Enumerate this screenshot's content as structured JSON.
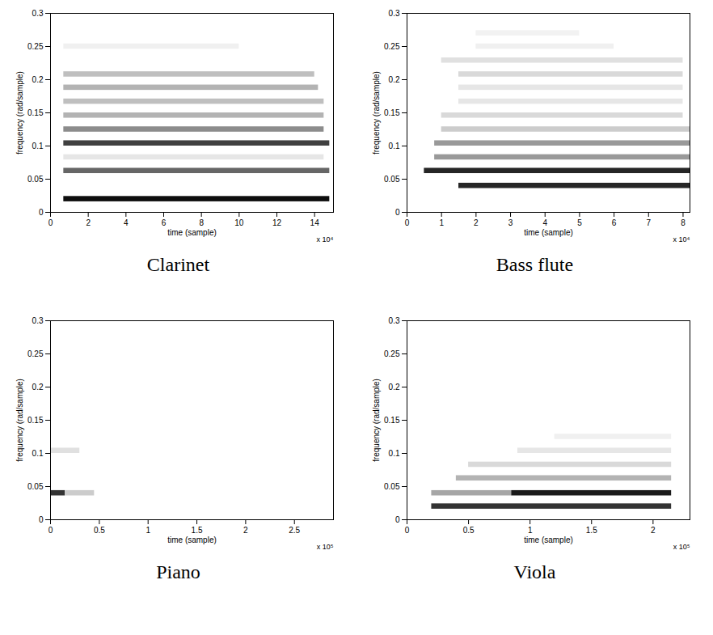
{
  "chart_data": [
    {
      "type": "heatmap",
      "title": "Clarinet",
      "xlabel": "time (sample)",
      "ylabel": "frequency (rad/sample)",
      "x_multiplier": "x 10⁴",
      "xlim": [
        0,
        15
      ],
      "xticks": [
        0,
        2,
        4,
        6,
        8,
        10,
        12,
        14
      ],
      "ylim": [
        0,
        0.3
      ],
      "yticks": [
        0,
        0.05,
        0.1,
        0.15,
        0.2,
        0.25,
        0.3
      ],
      "color_range": [
        0,
        1
      ],
      "bands": [
        {
          "frequency": 0.02,
          "start": 0.7,
          "end": 14.8,
          "intensity": 0.95
        },
        {
          "frequency": 0.0625,
          "start": 0.7,
          "end": 14.8,
          "intensity": 0.6
        },
        {
          "frequency": 0.083,
          "start": 0.7,
          "end": 14.5,
          "intensity": 0.1
        },
        {
          "frequency": 0.104,
          "start": 0.7,
          "end": 14.8,
          "intensity": 0.75
        },
        {
          "frequency": 0.125,
          "start": 0.7,
          "end": 14.5,
          "intensity": 0.45
        },
        {
          "frequency": 0.146,
          "start": 0.7,
          "end": 14.5,
          "intensity": 0.3
        },
        {
          "frequency": 0.167,
          "start": 0.7,
          "end": 14.5,
          "intensity": 0.25
        },
        {
          "frequency": 0.188,
          "start": 0.7,
          "end": 14.2,
          "intensity": 0.3
        },
        {
          "frequency": 0.208,
          "start": 0.7,
          "end": 14.0,
          "intensity": 0.25
        },
        {
          "frequency": 0.25,
          "start": 0.7,
          "end": 10.0,
          "intensity": 0.06
        }
      ]
    },
    {
      "type": "heatmap",
      "title": "Bass flute",
      "xlabel": "time (sample)",
      "ylabel": "frequency (rad/sample)",
      "x_multiplier": "x 10⁴",
      "xlim": [
        0,
        8.2
      ],
      "xticks": [
        0,
        1,
        2,
        3,
        4,
        5,
        6,
        7,
        8
      ],
      "ylim": [
        0,
        0.3
      ],
      "yticks": [
        0,
        0.05,
        0.1,
        0.15,
        0.2,
        0.25,
        0.3
      ],
      "color_range": [
        0,
        1
      ],
      "bands": [
        {
          "frequency": 0.04,
          "start": 1.5,
          "end": 8.2,
          "intensity": 0.85
        },
        {
          "frequency": 0.0625,
          "start": 0.5,
          "end": 8.2,
          "intensity": 0.85
        },
        {
          "frequency": 0.083,
          "start": 0.8,
          "end": 8.2,
          "intensity": 0.4
        },
        {
          "frequency": 0.104,
          "start": 0.8,
          "end": 8.2,
          "intensity": 0.4
        },
        {
          "frequency": 0.125,
          "start": 1.0,
          "end": 8.2,
          "intensity": 0.2
        },
        {
          "frequency": 0.146,
          "start": 1.0,
          "end": 8.0,
          "intensity": 0.15
        },
        {
          "frequency": 0.167,
          "start": 1.5,
          "end": 8.0,
          "intensity": 0.1
        },
        {
          "frequency": 0.188,
          "start": 1.5,
          "end": 8.0,
          "intensity": 0.1
        },
        {
          "frequency": 0.208,
          "start": 1.5,
          "end": 8.0,
          "intensity": 0.15
        },
        {
          "frequency": 0.229,
          "start": 1.0,
          "end": 8.0,
          "intensity": 0.12
        },
        {
          "frequency": 0.25,
          "start": 2.0,
          "end": 6.0,
          "intensity": 0.06
        },
        {
          "frequency": 0.27,
          "start": 2.0,
          "end": 5.0,
          "intensity": 0.05
        }
      ]
    },
    {
      "type": "heatmap",
      "title": "Piano",
      "xlabel": "time (sample)",
      "ylabel": "frequency (rad/sample)",
      "x_multiplier": "x 10⁵",
      "xlim": [
        0,
        2.9
      ],
      "xticks": [
        0,
        0.5,
        1,
        1.5,
        2,
        2.5
      ],
      "ylim": [
        0,
        0.3
      ],
      "yticks": [
        0,
        0.05,
        0.1,
        0.15,
        0.2,
        0.25,
        0.3
      ],
      "color_range": [
        0,
        1
      ],
      "bands": [
        {
          "frequency": 0.04,
          "start": 0,
          "end": 0.15,
          "intensity": 0.8
        },
        {
          "frequency": 0.04,
          "start": 0.15,
          "end": 0.45,
          "intensity": 0.2
        },
        {
          "frequency": 0.104,
          "start": 0,
          "end": 0.3,
          "intensity": 0.12
        }
      ]
    },
    {
      "type": "heatmap",
      "title": "Viola",
      "xlabel": "time (sample)",
      "ylabel": "frequency (rad/sample)",
      "x_multiplier": "x 10⁵",
      "xlim": [
        0,
        2.3
      ],
      "xticks": [
        0,
        0.5,
        1,
        1.5,
        2
      ],
      "ylim": [
        0,
        0.3
      ],
      "yticks": [
        0,
        0.05,
        0.1,
        0.15,
        0.2,
        0.25,
        0.3
      ],
      "color_range": [
        0,
        1
      ],
      "bands": [
        {
          "frequency": 0.02,
          "start": 0.2,
          "end": 2.15,
          "intensity": 0.8
        },
        {
          "frequency": 0.04,
          "start": 0.2,
          "end": 0.85,
          "intensity": 0.35
        },
        {
          "frequency": 0.04,
          "start": 0.85,
          "end": 2.15,
          "intensity": 0.9
        },
        {
          "frequency": 0.0625,
          "start": 0.4,
          "end": 2.15,
          "intensity": 0.3
        },
        {
          "frequency": 0.083,
          "start": 0.5,
          "end": 2.15,
          "intensity": 0.15
        },
        {
          "frequency": 0.104,
          "start": 0.9,
          "end": 2.15,
          "intensity": 0.1
        },
        {
          "frequency": 0.125,
          "start": 1.2,
          "end": 2.15,
          "intensity": 0.06
        }
      ]
    }
  ]
}
